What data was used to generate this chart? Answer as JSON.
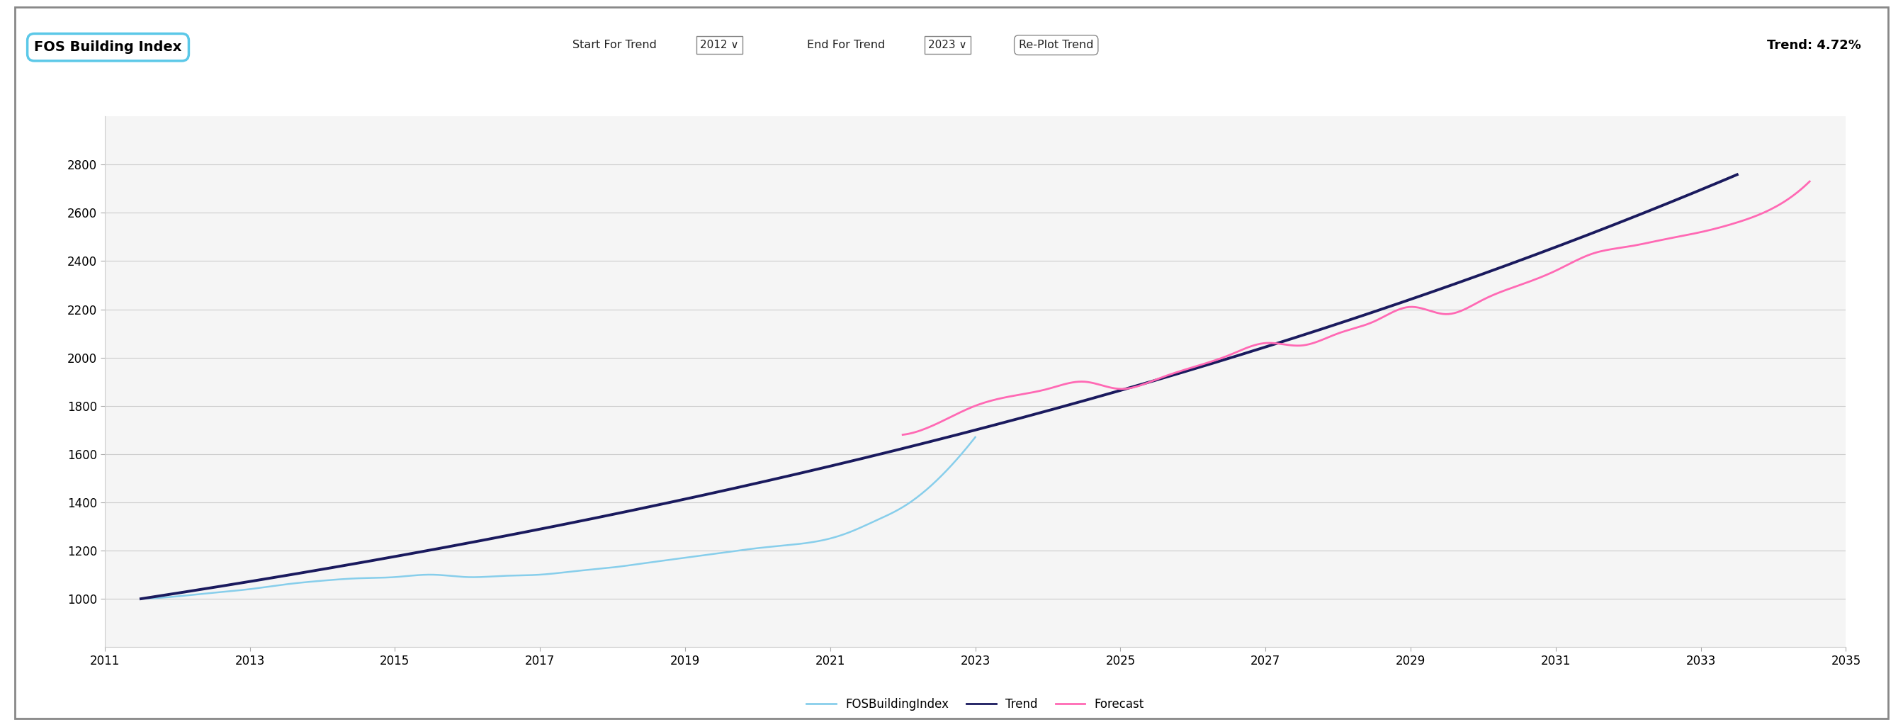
{
  "title": "FOS Building Index",
  "header_start_label": "Start For Trend",
  "header_start_value": "2012",
  "header_end_label": "End For Trend",
  "header_end_value": "2023",
  "header_button": "Re-Plot Trend",
  "header_trend": "Trend: 4.72%",
  "xlim": [
    2011,
    2035
  ],
  "ylim": [
    800,
    3000
  ],
  "yticks": [
    1000,
    1200,
    1400,
    1600,
    1800,
    2000,
    2200,
    2400,
    2600,
    2800
  ],
  "xticks": [
    2011,
    2013,
    2015,
    2017,
    2019,
    2021,
    2023,
    2025,
    2027,
    2029,
    2031,
    2033,
    2035
  ],
  "fos_color": "#87CEEB",
  "trend_color": "#1a1a5e",
  "forecast_color": "#FF69B4",
  "legend_labels": [
    "FOSBuildingIndex",
    "Trend",
    "Forecast"
  ],
  "grid_color": "#cccccc",
  "trend_start_year": 2011.5,
  "trend_rate": 0.0472,
  "trend_base_value": 1000,
  "trend_ext_end": 2033.5,
  "fos_data_x": [
    2011.5,
    2012.0,
    2012.5,
    2013.0,
    2013.5,
    2014.0,
    2014.5,
    2015.0,
    2015.5,
    2016.0,
    2016.5,
    2017.0,
    2017.5,
    2018.0,
    2018.5,
    2019.0,
    2019.5,
    2020.0,
    2020.5,
    2021.0,
    2021.3,
    2021.6,
    2022.0,
    2022.5,
    2023.0
  ],
  "fos_data_y": [
    1000,
    1010,
    1025,
    1040,
    1060,
    1075,
    1085,
    1090,
    1100,
    1090,
    1095,
    1100,
    1115,
    1130,
    1150,
    1170,
    1190,
    1210,
    1225,
    1250,
    1280,
    1320,
    1380,
    1500,
    1670
  ],
  "forecast_x": [
    2022.0,
    2022.5,
    2023.0,
    2023.5,
    2024.0,
    2024.5,
    2025.0,
    2025.5,
    2026.0,
    2026.5,
    2027.0,
    2027.5,
    2028.0,
    2028.5,
    2029.0,
    2029.5,
    2030.0,
    2030.5,
    2031.0,
    2031.5,
    2032.0,
    2032.5,
    2033.0,
    2033.5,
    2034.0,
    2034.5
  ],
  "forecast_y": [
    1680,
    1730,
    1800,
    1840,
    1870,
    1900,
    1870,
    1910,
    1960,
    2010,
    2060,
    2050,
    2100,
    2150,
    2210,
    2180,
    2240,
    2300,
    2360,
    2430,
    2460,
    2490,
    2520,
    2560,
    2620,
    2730
  ]
}
